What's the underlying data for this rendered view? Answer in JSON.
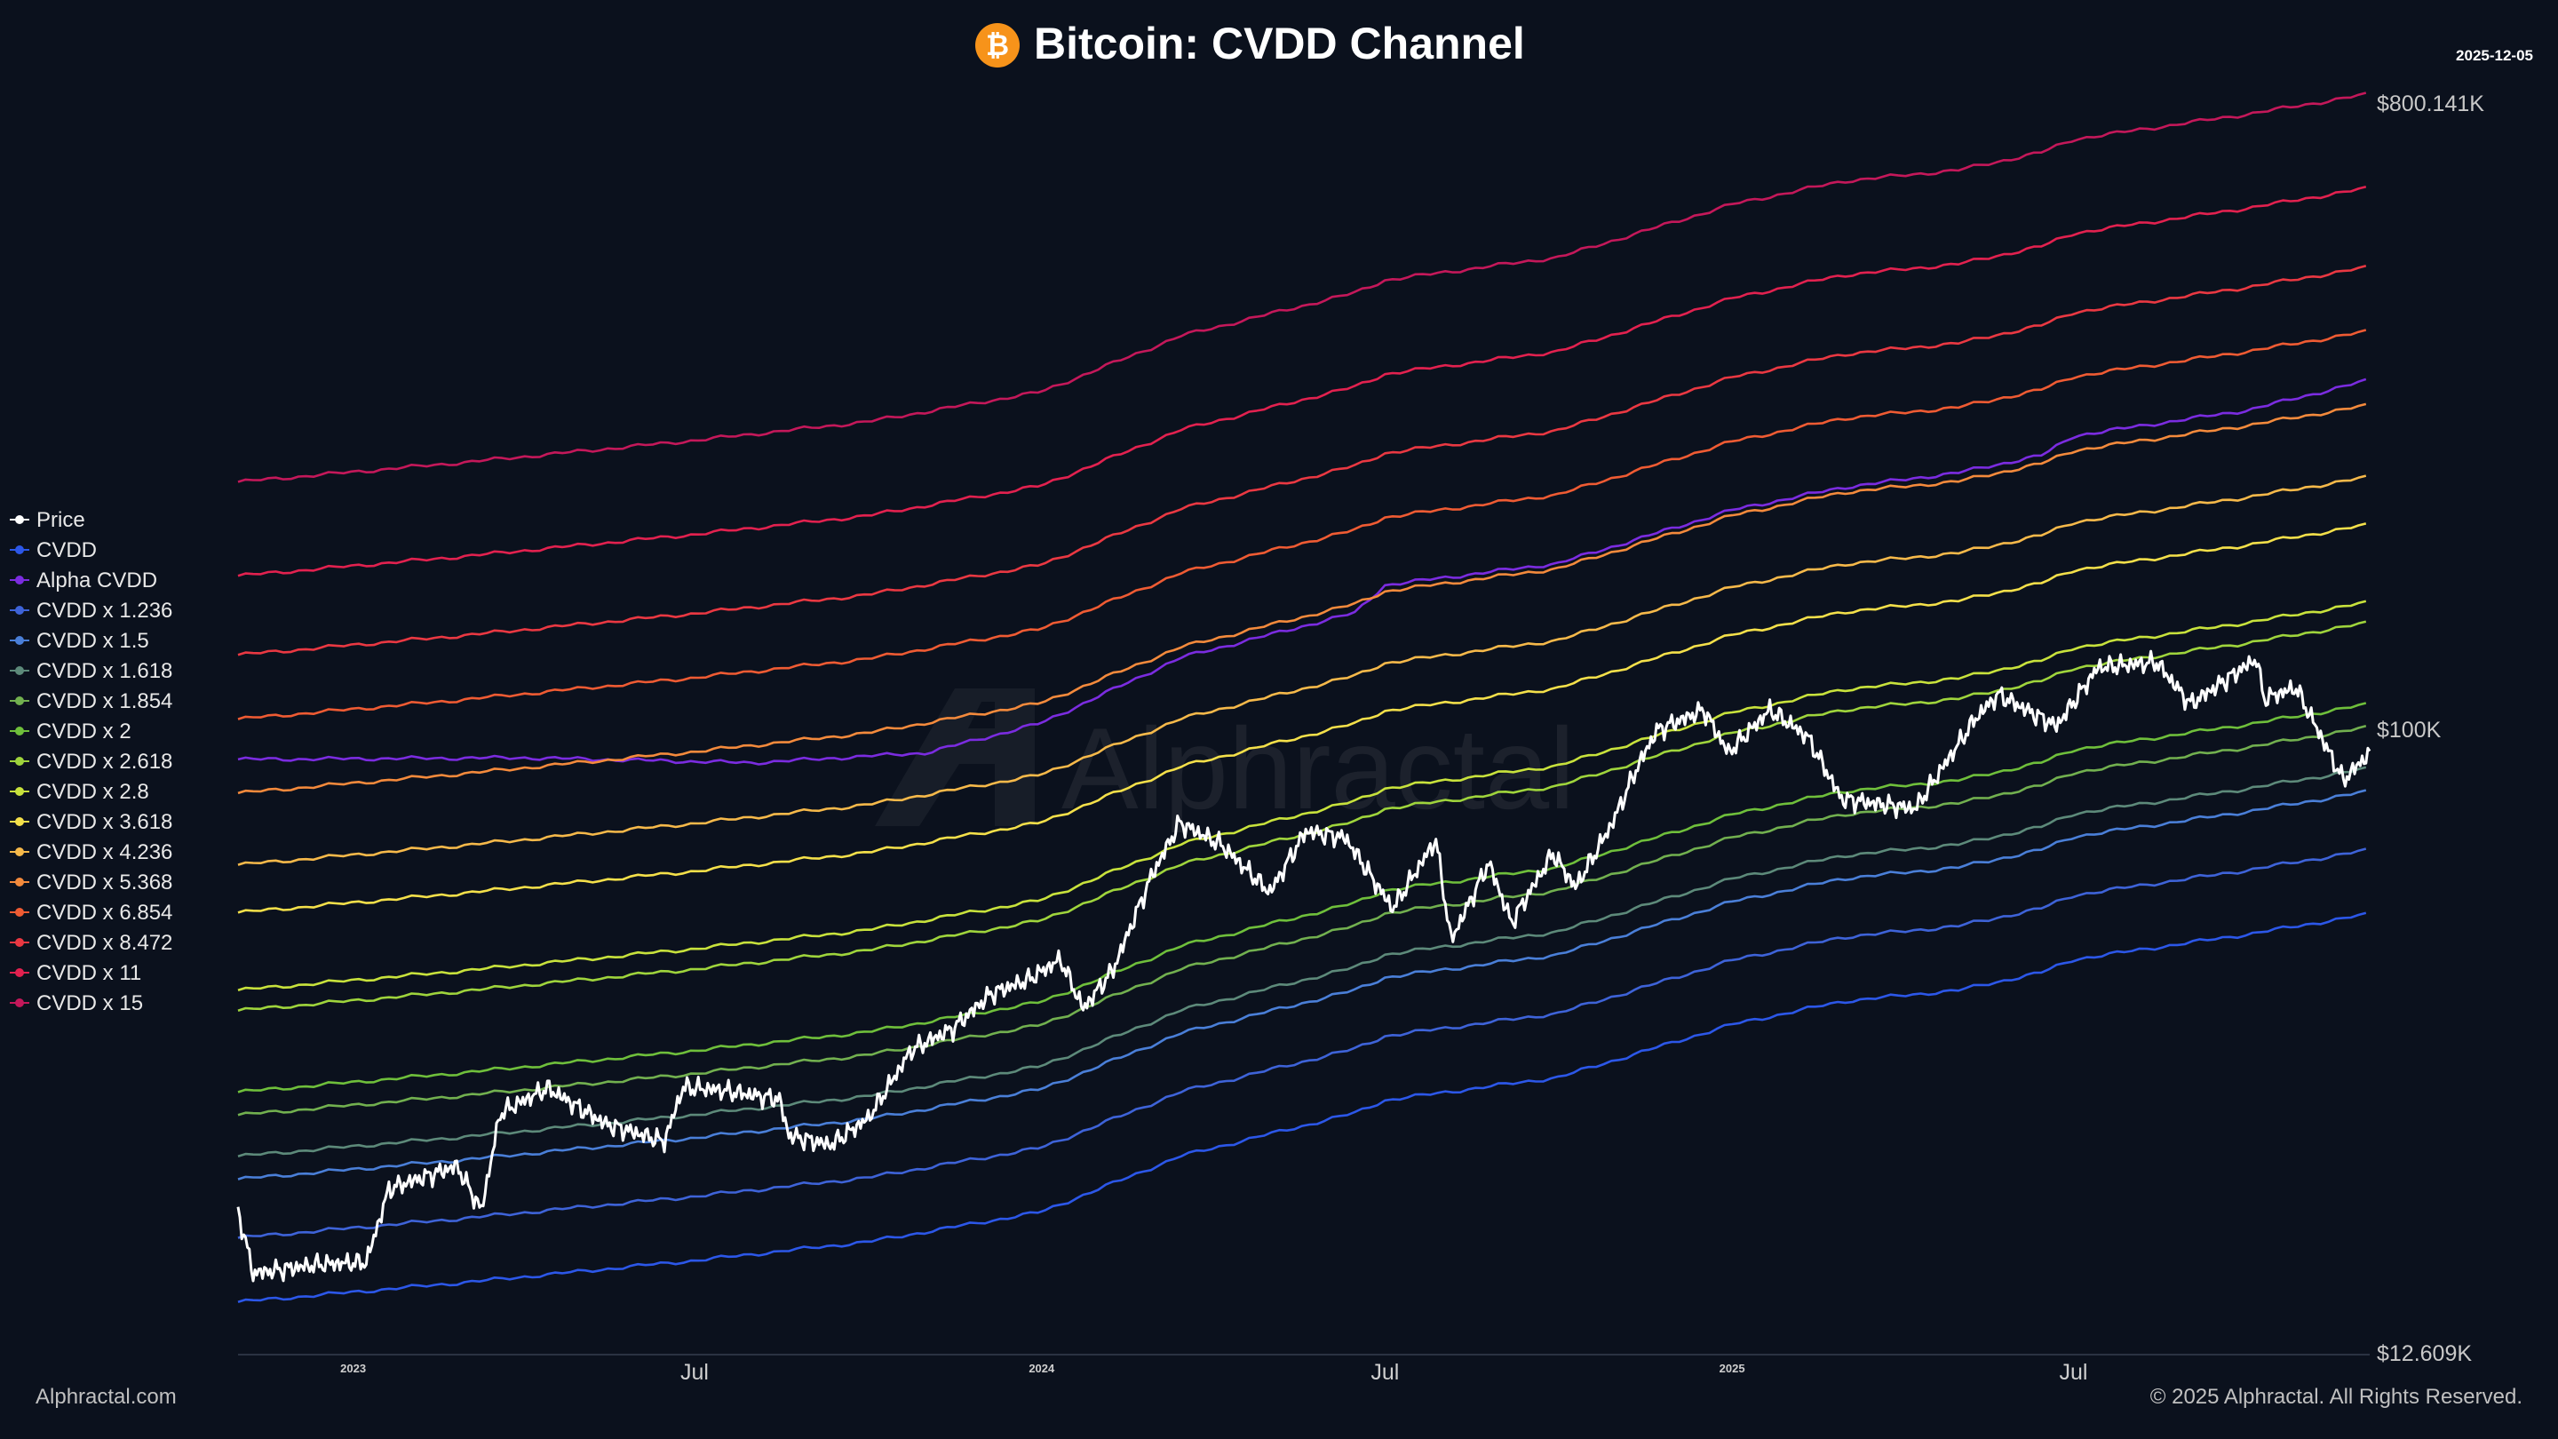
{
  "header": {
    "title": "Bitcoin: CVDD Channel",
    "date": "2025-12-05",
    "logo_icon": "bitcoin-icon",
    "logo_glyph": "₿",
    "brand_color": "#f7931a"
  },
  "watermark": {
    "text": "Alphractal"
  },
  "footer": {
    "left": "Alphractal.com",
    "right": "© 2025 Alphractal. All Rights Reserved."
  },
  "axis": {
    "y_top_label": "$800.141K",
    "y_mid_label": "$100K",
    "y_bottom_label": "$12.609K",
    "y_scale": "log",
    "y_range": [
      12609,
      800141
    ],
    "x_ticks": [
      {
        "label": "2023",
        "date": "2023-01-01",
        "small": true
      },
      {
        "label": "Jul",
        "date": "2023-07-01",
        "small": false
      },
      {
        "label": "2024",
        "date": "2024-01-01",
        "small": true
      },
      {
        "label": "Jul",
        "date": "2024-07-01",
        "small": false
      },
      {
        "label": "2025",
        "date": "2025-01-01",
        "small": true
      },
      {
        "label": "Jul",
        "date": "2025-07-01",
        "small": false
      }
    ]
  },
  "chart_data": {
    "type": "line",
    "title": "Bitcoin: CVDD Channel",
    "y_scale": "log",
    "ylim": [
      12609,
      800141
    ],
    "x_range": [
      "2022-11-01",
      "2025-12-05"
    ],
    "base_cvdd_points": [
      [
        "2022-11-01",
        15000
      ],
      [
        "2023-03-01",
        16000
      ],
      [
        "2023-07-01",
        17200
      ],
      [
        "2023-10-01",
        18300
      ],
      [
        "2024-01-01",
        20200
      ],
      [
        "2024-03-15",
        24300
      ],
      [
        "2024-06-15",
        28000
      ],
      [
        "2024-07-01",
        29200
      ],
      [
        "2024-10-01",
        31500
      ],
      [
        "2025-01-01",
        37500
      ],
      [
        "2025-03-01",
        40500
      ],
      [
        "2025-05-01",
        42000
      ],
      [
        "2025-06-15",
        44600
      ],
      [
        "2025-07-01",
        46500
      ],
      [
        "2025-10-01",
        50500
      ],
      [
        "2025-12-05",
        54000
      ]
    ],
    "series": [
      {
        "name": "Price",
        "color": "#ffffff",
        "points": [
          [
            "2022-11-01",
            20300
          ],
          [
            "2022-11-09",
            16500
          ],
          [
            "2022-12-15",
            17000
          ],
          [
            "2023-01-08",
            17100
          ],
          [
            "2023-01-20",
            21800
          ],
          [
            "2023-02-25",
            23500
          ],
          [
            "2023-03-10",
            20300
          ],
          [
            "2023-03-20",
            28000
          ],
          [
            "2023-04-14",
            30400
          ],
          [
            "2023-05-15",
            27000
          ],
          [
            "2023-06-15",
            25500
          ],
          [
            "2023-06-25",
            30500
          ],
          [
            "2023-07-15",
            30200
          ],
          [
            "2023-08-15",
            29300
          ],
          [
            "2023-08-20",
            26000
          ],
          [
            "2023-09-11",
            25200
          ],
          [
            "2023-10-01",
            27500
          ],
          [
            "2023-10-24",
            34500
          ],
          [
            "2023-11-15",
            37000
          ],
          [
            "2023-12-05",
            41500
          ],
          [
            "2023-12-25",
            43500
          ],
          [
            "2024-01-11",
            46500
          ],
          [
            "2024-01-23",
            39500
          ],
          [
            "2024-02-08",
            45000
          ],
          [
            "2024-02-28",
            61000
          ],
          [
            "2024-03-14",
            73000
          ],
          [
            "2024-04-05",
            68000
          ],
          [
            "2024-05-01",
            58000
          ],
          [
            "2024-05-20",
            71000
          ],
          [
            "2024-06-10",
            69500
          ],
          [
            "2024-07-05",
            55000
          ],
          [
            "2024-07-28",
            69000
          ],
          [
            "2024-08-05",
            49500
          ],
          [
            "2024-08-25",
            64000
          ],
          [
            "2024-09-06",
            52500
          ],
          [
            "2024-09-28",
            66000
          ],
          [
            "2024-10-10",
            59000
          ],
          [
            "2024-10-29",
            72500
          ],
          [
            "2024-11-12",
            88000
          ],
          [
            "2024-11-22",
            99000
          ],
          [
            "2024-12-17",
            106000
          ],
          [
            "2024-12-30",
            92000
          ],
          [
            "2025-01-21",
            106000
          ],
          [
            "2025-02-10",
            97000
          ],
          [
            "2025-02-28",
            79000
          ],
          [
            "2025-04-08",
            76500
          ],
          [
            "2025-05-10",
            103000
          ],
          [
            "2025-05-22",
            111500
          ],
          [
            "2025-06-22",
            100500
          ],
          [
            "2025-07-14",
            122000
          ],
          [
            "2025-08-14",
            124000
          ],
          [
            "2025-09-01",
            108000
          ],
          [
            "2025-10-06",
            125500
          ],
          [
            "2025-10-10",
            110000
          ],
          [
            "2025-10-27",
            114000
          ],
          [
            "2025-11-21",
            84000
          ],
          [
            "2025-12-05",
            92000
          ]
        ]
      },
      {
        "name": "CVDD",
        "color": "#2c57e8",
        "multiplier": 1
      },
      {
        "name": "Alpha CVDD",
        "color": "#7b2ce0",
        "custom": true
      },
      {
        "name": "CVDD x 1.236",
        "color": "#3e63d8",
        "multiplier": 1.236
      },
      {
        "name": "CVDD x 1.5",
        "color": "#4a7fd8",
        "multiplier": 1.5
      },
      {
        "name": "CVDD x 1.618",
        "color": "#5d8a7a",
        "multiplier": 1.618
      },
      {
        "name": "CVDD x 1.854",
        "color": "#72b04f",
        "multiplier": 1.854
      },
      {
        "name": "CVDD x 2",
        "color": "#6fbf3b",
        "multiplier": 2
      },
      {
        "name": "CVDD x 2.618",
        "color": "#9fd43c",
        "multiplier": 2.618
      },
      {
        "name": "CVDD x 2.8",
        "color": "#c8e23c",
        "multiplier": 2.8
      },
      {
        "name": "CVDD x 3.618",
        "color": "#f4e04a",
        "multiplier": 3.618
      },
      {
        "name": "CVDD x 4.236",
        "color": "#f6b94a",
        "multiplier": 4.236
      },
      {
        "name": "CVDD x 5.368",
        "color": "#f48a3c",
        "multiplier": 5.368
      },
      {
        "name": "CVDD x 6.854",
        "color": "#ef5b33",
        "multiplier": 6.854
      },
      {
        "name": "CVDD x 8.472",
        "color": "#ea3842",
        "multiplier": 8.472
      },
      {
        "name": "CVDD x 11",
        "color": "#e2214f",
        "multiplier": 11
      },
      {
        "name": "CVDD x 15",
        "color": "#c4185a",
        "multiplier": 15
      }
    ],
    "alpha_cvdd_points": [
      [
        "2022-11-01",
        90000
      ],
      [
        "2023-04-01",
        90500
      ],
      [
        "2023-08-01",
        89000
      ],
      [
        "2023-11-01",
        92000
      ],
      [
        "2024-01-01",
        101500
      ],
      [
        "2024-03-15",
        126000
      ],
      [
        "2024-06-15",
        146000
      ],
      [
        "2024-07-01",
        160000
      ],
      [
        "2024-10-01",
        172000
      ],
      [
        "2025-01-01",
        205000
      ],
      [
        "2025-03-01",
        221000
      ],
      [
        "2025-05-01",
        232000
      ],
      [
        "2025-06-15",
        246000
      ],
      [
        "2025-07-01",
        262000
      ],
      [
        "2025-10-01",
        285000
      ],
      [
        "2025-12-05",
        315000
      ]
    ]
  }
}
